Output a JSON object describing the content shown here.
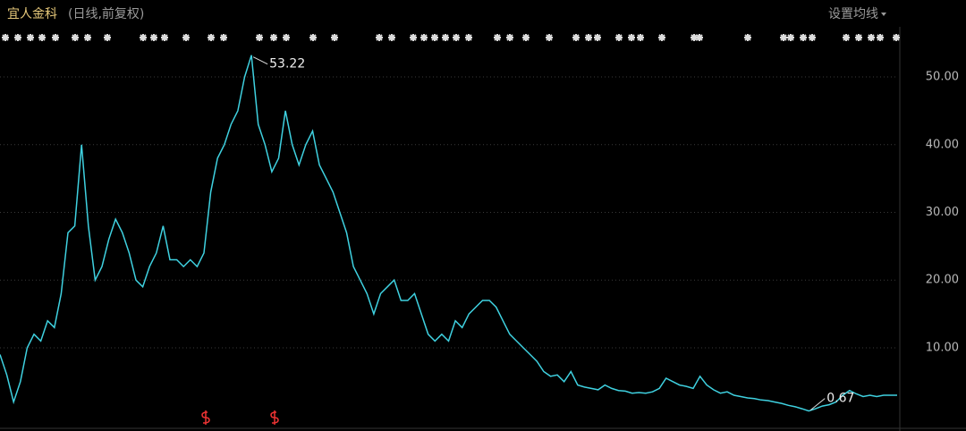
{
  "header": {
    "title": "宜人金科",
    "subtitle": "(日线,前复权)",
    "menu": "设置均线"
  },
  "chart_data": {
    "type": "line",
    "color": "#3fd1e0",
    "values": [
      9,
      6,
      2,
      5,
      10,
      12,
      11,
      14,
      13,
      18,
      27,
      28,
      40,
      28,
      20,
      22,
      26,
      29,
      27,
      24,
      20,
      19,
      22,
      24,
      28,
      23,
      23,
      22,
      23,
      22,
      24,
      33,
      38,
      40,
      43,
      45,
      50,
      53.22,
      43,
      40,
      36,
      38,
      45,
      40,
      37,
      40,
      42,
      37,
      35,
      33,
      30,
      27,
      22,
      20,
      18,
      15,
      18,
      19,
      20,
      17,
      17,
      18,
      15,
      12,
      11,
      12,
      11,
      14,
      13,
      15,
      16,
      17,
      17,
      16,
      14,
      12,
      11,
      10,
      9,
      8,
      6.5,
      5.8,
      6,
      5,
      6.5,
      4.5,
      4.2,
      4,
      3.8,
      4.5,
      4,
      3.7,
      3.6,
      3.3,
      3.4,
      3.3,
      3.5,
      4,
      5.5,
      5,
      4.5,
      4.3,
      4,
      5.8,
      4.5,
      3.8,
      3.3,
      3.5,
      3,
      2.8,
      2.6,
      2.5,
      2.3,
      2.2,
      2,
      1.8,
      1.5,
      1.3,
      1,
      0.67,
      1,
      1.4,
      1.6,
      2,
      3,
      3.7,
      3.2,
      2.8,
      3,
      2.8,
      3,
      3,
      3
    ],
    "annotations": [
      53.22,
      0.67
    ],
    "ylim": [
      -0.7,
      54.1
    ],
    "yticks": [
      {
        "value": 10,
        "label": "10.00"
      },
      {
        "value": 20,
        "label": "20.00"
      },
      {
        "value": 30,
        "label": "30.00"
      },
      {
        "value": 40,
        "label": "40.00"
      },
      {
        "value": 50,
        "label": "50.00"
      }
    ],
    "grid": true
  }
}
